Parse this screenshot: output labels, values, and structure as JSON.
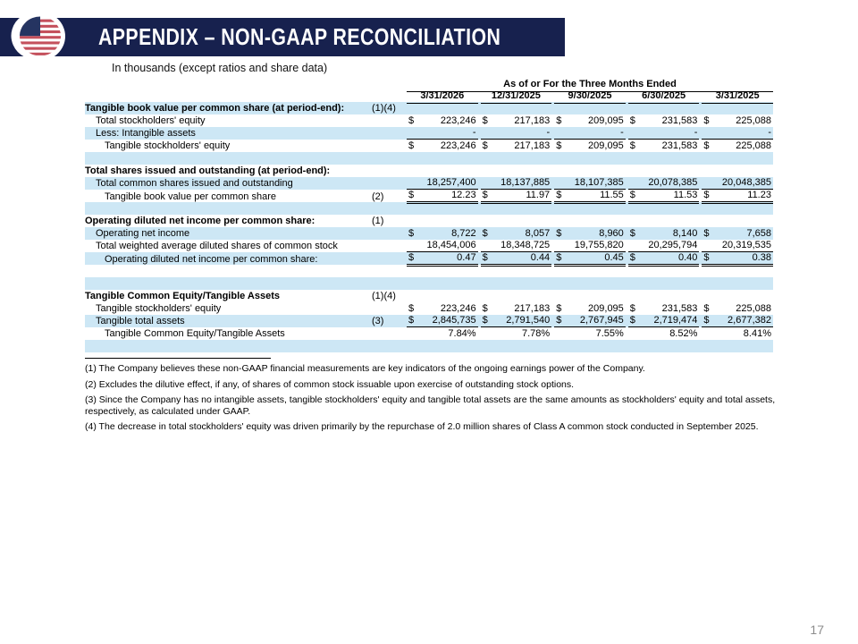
{
  "header": {
    "title": "APPENDIX – NON-GAAP RECONCILIATION",
    "logo_icon": "us-flag-globe-icon"
  },
  "subtitle": "In thousands (except ratios and share data)",
  "page_number": "17",
  "colors": {
    "navy": "#17214e",
    "stripe": "#cde7f5",
    "flag_red": "#c4505c",
    "page_gray": "#8c8c8c"
  },
  "table": {
    "period_header": "As of or For the Three Months Ended",
    "columns": [
      "3/31/2026",
      "12/31/2025",
      "9/30/2025",
      "6/30/2025",
      "3/31/2025"
    ],
    "rows": [
      {
        "label": "Tangible book value per common share (at period-end):",
        "ref": "(1)(4)",
        "bold": true,
        "indent": 0,
        "shade": true
      },
      {
        "label": "Total stockholders' equity",
        "indent": 1,
        "dollar": true,
        "values": [
          "223,246",
          "217,183",
          "209,095",
          "231,583",
          "225,088"
        ]
      },
      {
        "label": "Less: Intangible assets",
        "indent": 1,
        "shade": true,
        "values": [
          "-",
          "-",
          "-",
          "-",
          "-"
        ],
        "underline": "single"
      },
      {
        "label": "Tangible stockholders' equity",
        "indent": 2,
        "dollar": true,
        "values": [
          "223,246",
          "217,183",
          "209,095",
          "231,583",
          "225,088"
        ]
      },
      {
        "blank": true,
        "shade": true
      },
      {
        "label": "Total shares issued and outstanding (at period-end):",
        "bold": true,
        "indent": 0
      },
      {
        "label": "Total common shares issued and outstanding",
        "indent": 1,
        "shade": true,
        "values": [
          "18,257,400",
          "18,137,885",
          "18,107,385",
          "20,078,385",
          "20,048,385"
        ],
        "underline": "single"
      },
      {
        "label": "Tangible book value per common share",
        "ref": "(2)",
        "indent": 2,
        "dollar": true,
        "values": [
          "12.23",
          "11.97",
          "11.55",
          "11.53",
          "11.23"
        ],
        "underline": "double"
      },
      {
        "blank": true,
        "shade": true
      },
      {
        "label": "Operating diluted net income per common share:",
        "ref": "(1)",
        "bold": true,
        "indent": 0
      },
      {
        "label": "Operating net income",
        "indent": 1,
        "shade": true,
        "dollar": true,
        "values": [
          "8,722",
          "8,057",
          "8,960",
          "8,140",
          "7,658"
        ]
      },
      {
        "label": "Total weighted average diluted shares of common stock",
        "indent": 1,
        "values": [
          "18,454,006",
          "18,348,725",
          "19,755,820",
          "20,295,794",
          "20,319,535"
        ],
        "underline": "single"
      },
      {
        "label": "Operating diluted net income per common share:",
        "indent": 2,
        "shade": true,
        "dollar": true,
        "values": [
          "0.47",
          "0.44",
          "0.45",
          "0.40",
          "0.38"
        ],
        "underline": "double"
      },
      {
        "blank": true
      },
      {
        "blank": true,
        "shade": true
      },
      {
        "label": "Tangible Common Equity/Tangible Assets",
        "ref": "(1)(4)",
        "bold": true,
        "indent": 0
      },
      {
        "label": "Tangible stockholders' equity",
        "indent": 1,
        "dollar": true,
        "values": [
          "223,246",
          "217,183",
          "209,095",
          "231,583",
          "225,088"
        ]
      },
      {
        "label": "Tangible total assets",
        "ref": "(3)",
        "indent": 1,
        "shade": true,
        "dollar": true,
        "values": [
          "2,845,735",
          "2,791,540",
          "2,767,945",
          "2,719,474",
          "2,677,382"
        ],
        "underline": "single"
      },
      {
        "label": "Tangible Common Equity/Tangible Assets",
        "indent": 2,
        "values": [
          "7.84%",
          "7.78%",
          "7.55%",
          "8.52%",
          "8.41%"
        ]
      },
      {
        "blank": true,
        "shade": true
      }
    ]
  },
  "footnotes": [
    "(1)  The Company believes these non-GAAP financial measurements are key indicators of the ongoing earnings power of the Company.",
    "(2)  Excludes the dilutive effect, if any, of shares of common stock issuable upon exercise of outstanding stock options.",
    "(3)  Since the Company has no intangible assets, tangible stockholders' equity and tangible total assets are the same amounts as stockholders' equity and total assets, respectively, as calculated under GAAP.",
    "(4) The decrease in total stockholders' equity was driven primarily by the repurchase of 2.0 million shares of Class A common stock conducted in September 2025."
  ]
}
